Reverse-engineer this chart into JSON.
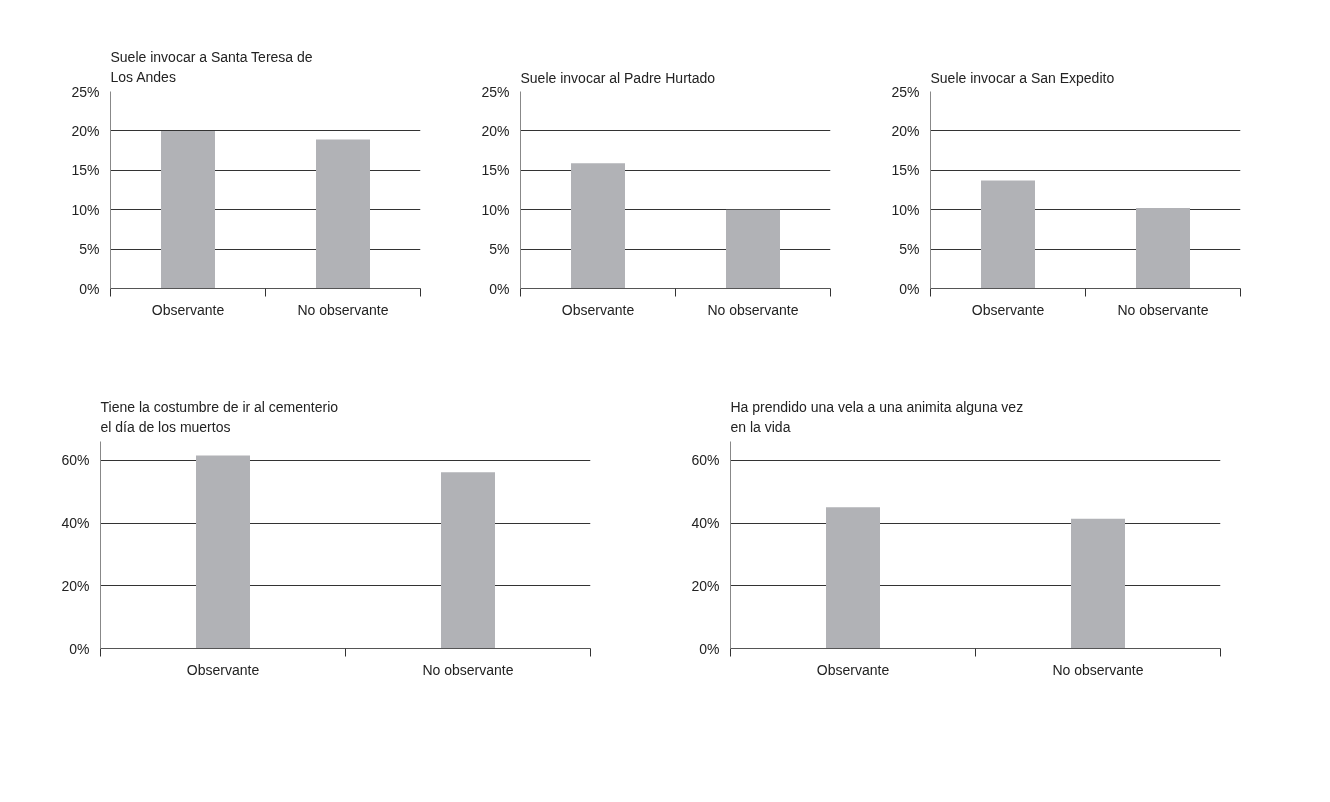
{
  "chart_data": [
    {
      "type": "bar",
      "title": "Suele invocar a Santa Teresa de\nLos Andes",
      "categories": [
        "Observante",
        "No observante"
      ],
      "values": [
        20,
        18.9
      ],
      "color": "#b1b2b6",
      "ylim": [
        0,
        25
      ],
      "yticks": [
        {
          "value": 0,
          "label": "0%"
        },
        {
          "value": 5,
          "label": "5%"
        },
        {
          "value": 10,
          "label": "10%"
        },
        {
          "value": 15,
          "label": "15%"
        },
        {
          "value": 20,
          "label": "20%"
        },
        {
          "value": 25,
          "label": "25%"
        }
      ],
      "grid": "y"
    },
    {
      "type": "bar",
      "title": "Suele invocar al Padre Hurtado",
      "categories": [
        "Observante",
        "No observante"
      ],
      "values": [
        15.9,
        10
      ],
      "color": "#b1b2b6",
      "ylim": [
        0,
        25
      ],
      "yticks": [
        {
          "value": 0,
          "label": "0%"
        },
        {
          "value": 5,
          "label": "5%"
        },
        {
          "value": 10,
          "label": "10%"
        },
        {
          "value": 15,
          "label": "15%"
        },
        {
          "value": 20,
          "label": "20%"
        },
        {
          "value": 25,
          "label": "25%"
        }
      ],
      "grid": "y"
    },
    {
      "type": "bar",
      "title": "Suele invocar a San Expedito",
      "categories": [
        "Observante",
        "No observante"
      ],
      "values": [
        13.7,
        10.2
      ],
      "color": "#b1b2b6",
      "ylim": [
        0,
        25
      ],
      "yticks": [
        {
          "value": 0,
          "label": "0%"
        },
        {
          "value": 5,
          "label": "5%"
        },
        {
          "value": 10,
          "label": "10%"
        },
        {
          "value": 15,
          "label": "15%"
        },
        {
          "value": 20,
          "label": "20%"
        },
        {
          "value": 25,
          "label": "25%"
        }
      ],
      "grid": "y"
    },
    {
      "type": "bar",
      "title": "Tiene la costumbre de ir al cementerio\nel día de los muertos",
      "categories": [
        "Observante",
        "No observante"
      ],
      "values": [
        61.5,
        56.2
      ],
      "color": "#b1b2b6",
      "ylim": [
        0,
        66
      ],
      "yticks": [
        {
          "value": 0,
          "label": "0%"
        },
        {
          "value": 20,
          "label": "20%"
        },
        {
          "value": 40,
          "label": "40%"
        },
        {
          "value": 60,
          "label": "60%"
        }
      ],
      "grid": "y"
    },
    {
      "type": "bar",
      "title": "Ha prendido una vela a una animita alguna vez\nen la vida",
      "categories": [
        "Observante",
        "No observante"
      ],
      "values": [
        45,
        41.4
      ],
      "color": "#b1b2b6",
      "ylim": [
        0,
        66
      ],
      "yticks": [
        {
          "value": 0,
          "label": "0%"
        },
        {
          "value": 20,
          "label": "20%"
        },
        {
          "value": 40,
          "label": "40%"
        },
        {
          "value": 60,
          "label": "60%"
        }
      ],
      "grid": "y"
    }
  ]
}
